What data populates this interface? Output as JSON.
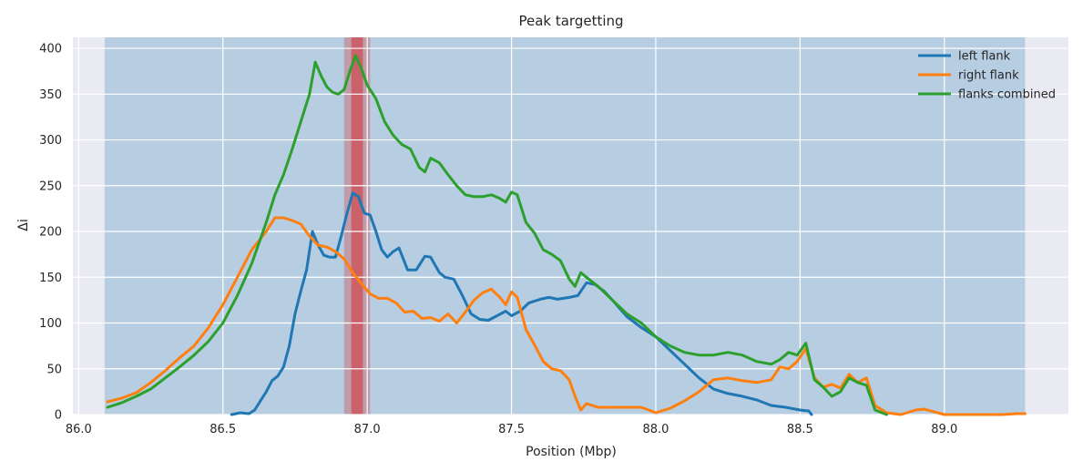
{
  "chart_data": {
    "type": "line",
    "title": "Peak targetting",
    "xlabel": "Position (Mbp)",
    "ylabel": "Δi",
    "xlim": [
      85.98,
      89.43
    ],
    "ylim": [
      0,
      412
    ],
    "x_ticks": [
      86.0,
      86.5,
      87.0,
      87.5,
      88.0,
      88.5,
      89.0
    ],
    "x_tick_labels": [
      "86.0",
      "86.5",
      "87.0",
      "87.5",
      "88.0",
      "88.5",
      "89.0"
    ],
    "y_ticks": [
      0,
      50,
      100,
      150,
      200,
      250,
      300,
      350,
      400
    ],
    "y_tick_labels": [
      "0",
      "50",
      "100",
      "150",
      "200",
      "250",
      "300",
      "350",
      "400"
    ],
    "grid": true,
    "legend_position": "top-right",
    "background_color": "#eaeaf2",
    "shaded_regions": [
      {
        "x0": 86.09,
        "x1": 89.28,
        "color": "#1f77b4",
        "opacity": 0.25
      },
      {
        "x0": 86.92,
        "x1": 87.01,
        "color": "#d62728",
        "opacity": 0.3
      },
      {
        "x0": 86.945,
        "x1": 86.985,
        "color": "#d62728",
        "opacity": 0.5
      }
    ],
    "series": [
      {
        "name": "left flank",
        "color": "#1f77b4",
        "x": [
          86.53,
          86.56,
          86.59,
          86.61,
          86.63,
          86.65,
          86.67,
          86.69,
          86.71,
          86.73,
          86.75,
          86.77,
          86.79,
          86.81,
          86.83,
          86.85,
          86.87,
          86.89,
          86.91,
          86.93,
          86.95,
          86.97,
          86.99,
          87.01,
          87.03,
          87.05,
          87.07,
          87.09,
          87.11,
          87.14,
          87.17,
          87.2,
          87.22,
          87.25,
          87.27,
          87.3,
          87.33,
          87.36,
          87.39,
          87.42,
          87.45,
          87.48,
          87.5,
          87.53,
          87.56,
          87.6,
          87.63,
          87.66,
          87.7,
          87.73,
          87.76,
          87.79,
          87.82,
          87.85,
          87.9,
          87.95,
          88.0,
          88.05,
          88.1,
          88.15,
          88.2,
          88.25,
          88.3,
          88.35,
          88.4,
          88.45,
          88.5,
          88.53,
          88.54
        ],
        "y": [
          0,
          2,
          1,
          5,
          15,
          25,
          37,
          42,
          52,
          75,
          110,
          135,
          158,
          200,
          185,
          174,
          172,
          172,
          195,
          220,
          242,
          238,
          220,
          218,
          200,
          180,
          172,
          178,
          182,
          158,
          158,
          173,
          172,
          155,
          150,
          148,
          130,
          110,
          104,
          103,
          108,
          113,
          108,
          113,
          122,
          126,
          128,
          126,
          128,
          130,
          144,
          142,
          135,
          125,
          107,
          95,
          85,
          70,
          55,
          40,
          28,
          23,
          20,
          16,
          10,
          8,
          5,
          4,
          0
        ]
      },
      {
        "name": "right flank",
        "color": "#ff7f0e",
        "x": [
          86.1,
          86.15,
          86.2,
          86.25,
          86.3,
          86.35,
          86.4,
          86.45,
          86.5,
          86.55,
          86.6,
          86.65,
          86.68,
          86.71,
          86.74,
          86.77,
          86.8,
          86.83,
          86.86,
          86.89,
          86.92,
          86.95,
          86.98,
          87.01,
          87.04,
          87.07,
          87.1,
          87.13,
          87.16,
          87.19,
          87.22,
          87.25,
          87.28,
          87.31,
          87.34,
          87.37,
          87.4,
          87.43,
          87.46,
          87.48,
          87.5,
          87.52,
          87.55,
          87.58,
          87.61,
          87.64,
          87.67,
          87.7,
          87.72,
          87.74,
          87.76,
          87.8,
          87.85,
          87.9,
          87.95,
          88.0,
          88.05,
          88.1,
          88.15,
          88.2,
          88.25,
          88.3,
          88.35,
          88.4,
          88.43,
          88.46,
          88.49,
          88.52,
          88.55,
          88.58,
          88.61,
          88.64,
          88.67,
          88.7,
          88.73,
          88.76,
          88.8,
          88.85,
          88.9,
          88.93,
          89.0,
          89.1,
          89.2,
          89.25,
          89.28
        ],
        "y": [
          14,
          18,
          24,
          35,
          48,
          62,
          75,
          95,
          120,
          150,
          180,
          200,
          215,
          215,
          212,
          208,
          195,
          185,
          183,
          178,
          170,
          155,
          143,
          132,
          127,
          127,
          122,
          112,
          113,
          105,
          106,
          102,
          110,
          100,
          112,
          125,
          133,
          137,
          128,
          120,
          134,
          128,
          93,
          76,
          58,
          50,
          48,
          38,
          20,
          5,
          12,
          8,
          8,
          8,
          8,
          2,
          7,
          15,
          25,
          38,
          40,
          37,
          35,
          38,
          52,
          50,
          58,
          72,
          40,
          30,
          33,
          29,
          44,
          35,
          40,
          10,
          2,
          0,
          5,
          6,
          0,
          0,
          0,
          1,
          1
        ]
      },
      {
        "name": "flanks combined",
        "color": "#2ca02c",
        "x": [
          86.1,
          86.15,
          86.2,
          86.25,
          86.3,
          86.35,
          86.4,
          86.45,
          86.5,
          86.55,
          86.6,
          86.65,
          86.68,
          86.71,
          86.74,
          86.77,
          86.8,
          86.82,
          86.84,
          86.86,
          86.88,
          86.9,
          86.92,
          86.94,
          86.96,
          86.98,
          87.0,
          87.03,
          87.06,
          87.09,
          87.12,
          87.15,
          87.18,
          87.2,
          87.22,
          87.25,
          87.28,
          87.31,
          87.34,
          87.37,
          87.4,
          87.43,
          87.46,
          87.48,
          87.5,
          87.52,
          87.55,
          87.58,
          87.61,
          87.64,
          87.67,
          87.7,
          87.72,
          87.74,
          87.76,
          87.8,
          87.85,
          87.9,
          87.95,
          88.0,
          88.05,
          88.1,
          88.15,
          88.2,
          88.25,
          88.3,
          88.35,
          88.4,
          88.43,
          88.46,
          88.49,
          88.52,
          88.55,
          88.58,
          88.61,
          88.64,
          88.67,
          88.7,
          88.73,
          88.76,
          88.8
        ],
        "y": [
          8,
          13,
          20,
          28,
          40,
          52,
          65,
          80,
          100,
          130,
          165,
          210,
          240,
          262,
          290,
          320,
          350,
          385,
          370,
          358,
          352,
          350,
          355,
          375,
          392,
          378,
          360,
          345,
          320,
          305,
          295,
          290,
          270,
          265,
          280,
          275,
          262,
          250,
          240,
          238,
          238,
          240,
          236,
          232,
          243,
          240,
          210,
          198,
          180,
          175,
          168,
          148,
          140,
          155,
          150,
          140,
          125,
          110,
          100,
          85,
          75,
          68,
          65,
          65,
          68,
          65,
          58,
          55,
          60,
          68,
          65,
          78,
          38,
          30,
          20,
          25,
          40,
          35,
          32,
          5,
          0
        ]
      }
    ]
  }
}
